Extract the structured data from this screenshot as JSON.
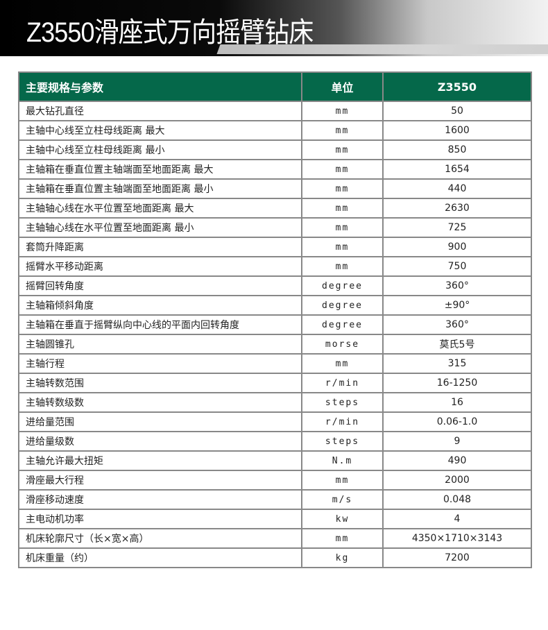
{
  "title": "Z3550滑座式万向摇臂钻床",
  "table": {
    "headers": [
      "主要规格与参数",
      "单位",
      "Z3550"
    ],
    "rows": [
      [
        "最大钻孔直径",
        "mm",
        "50"
      ],
      [
        "主轴中心线至立柱母线距离 最大",
        "mm",
        "1600"
      ],
      [
        "主轴中心线至立柱母线距离 最小",
        "mm",
        "850"
      ],
      [
        "主轴箱在垂直位置主轴端面至地面距离 最大",
        "mm",
        "1654"
      ],
      [
        "主轴箱在垂直位置主轴端面至地面距离 最小",
        "mm",
        "440"
      ],
      [
        "主轴轴心线在水平位置至地面距离 最大",
        "mm",
        "2630"
      ],
      [
        "主轴轴心线在水平位置至地面距离 最小",
        "mm",
        "725"
      ],
      [
        "套筒升降距离",
        "mm",
        "900"
      ],
      [
        "摇臂水平移动距离",
        "mm",
        "750"
      ],
      [
        "摇臂回转角度",
        "degree",
        "360°"
      ],
      [
        "主轴箱倾斜角度",
        "degree",
        "±90°"
      ],
      [
        "主轴箱在垂直于摇臂纵向中心线的平面内回转角度",
        "degree",
        "360°"
      ],
      [
        "主轴圆锥孔",
        "morse",
        "莫氏5号"
      ],
      [
        "主轴行程",
        "mm",
        "315"
      ],
      [
        "主轴转数范围",
        "r/min",
        "16-1250"
      ],
      [
        "主轴转数级数",
        "steps",
        "16"
      ],
      [
        "进给量范围",
        "r/min",
        "0.06-1.0"
      ],
      [
        "进给量级数",
        "steps",
        "9"
      ],
      [
        "主轴允许最大扭矩",
        "N.m",
        "490"
      ],
      [
        "滑座最大行程",
        "mm",
        "2000"
      ],
      [
        "滑座移动速度",
        "m/s",
        "0.048"
      ],
      [
        "主电动机功率",
        "kw",
        "4"
      ],
      [
        "机床轮廓尺寸（长×宽×高）",
        "mm",
        "4350×1710×3143"
      ],
      [
        "机床重量（约）",
        "kg",
        "7200"
      ]
    ]
  },
  "colors": {
    "header_green": "#05684a",
    "border": "#888888"
  }
}
